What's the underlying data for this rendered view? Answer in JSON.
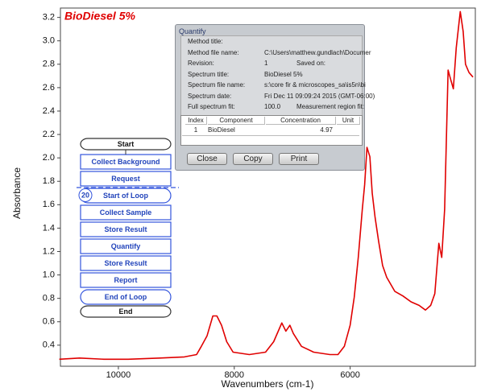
{
  "chart_data": {
    "type": "line",
    "title": "BioDiesel 5%",
    "x_label": "Wavenumbers (cm-1)",
    "y_label": "Absorbance",
    "color": "#e00000",
    "x": [
      11020,
      10670,
      10250,
      9830,
      9280,
      8860,
      8650,
      8580,
      8470,
      8370,
      8300,
      8220,
      8130,
      8020,
      7740,
      7460,
      7320,
      7180,
      7110,
      7040,
      6980,
      6840,
      6630,
      6350,
      6210,
      6100,
      6000,
      5930,
      5860,
      5790,
      5750,
      5710,
      5660,
      5620,
      5570,
      5510,
      5440,
      5370,
      5230,
      5090,
      4950,
      4810,
      4700,
      4610,
      4540,
      4470,
      4420,
      4370,
      4310,
      4260,
      4220,
      4170,
      4100,
      4050,
      4010,
      3950,
      3880
    ],
    "values": [
      0.28,
      0.29,
      0.28,
      0.28,
      0.29,
      0.3,
      0.32,
      0.38,
      0.48,
      0.65,
      0.65,
      0.57,
      0.43,
      0.34,
      0.32,
      0.34,
      0.43,
      0.59,
      0.52,
      0.57,
      0.5,
      0.39,
      0.34,
      0.32,
      0.32,
      0.39,
      0.57,
      0.81,
      1.15,
      1.56,
      1.77,
      2.09,
      2.01,
      1.7,
      1.49,
      1.29,
      1.08,
      0.98,
      0.86,
      0.82,
      0.77,
      0.74,
      0.7,
      0.74,
      0.84,
      1.27,
      1.15,
      1.56,
      2.75,
      2.66,
      2.59,
      2.94,
      3.25,
      3.08,
      2.8,
      2.73,
      2.69
    ],
    "xlim": [
      11000,
      3840
    ],
    "ylim": [
      0.22,
      3.28
    ],
    "xticks": [
      10000,
      8000,
      6000
    ],
    "yticks": [
      0.4,
      0.6,
      0.8,
      {
        "value": 1,
        "label": "1.0"
      },
      1.2,
      1.4,
      1.6,
      1.8,
      {
        "value": 2,
        "label": "2.0"
      },
      2.2,
      2.4,
      2.6,
      2.8,
      {
        "value": 3,
        "label": "3.0"
      },
      3.2
    ]
  },
  "dialog": {
    "title": "Quantify",
    "rows": [
      [
        "Method title:"
      ],
      [
        "Method file name:",
        "C:\\Users\\matthew.gundlach\\Documer"
      ],
      [
        "Revision:",
        "1",
        "Saved on:"
      ],
      [
        "Spectrum title:",
        "BioDiesel 5%"
      ],
      [
        "Spectrum file name:",
        "s:\\core fir & microscopes_sa\\is5n\\bi"
      ],
      [
        "Spectrum date:",
        "Fri Dec 11 09:09:24 2015 (GMT-06:00)"
      ],
      [
        "Full spectrum fit:",
        "100.0",
        "Measurement region fit:"
      ]
    ],
    "table": {
      "headers": [
        "Index",
        "Component",
        "Concentration",
        "Unit"
      ],
      "rows": [
        [
          1,
          "BioDiesel",
          4.97
        ]
      ]
    },
    "buttons": [
      "Close",
      "Copy",
      "Print"
    ]
  },
  "flowchart": {
    "steps": [
      "Start",
      "Collect Background",
      "Request",
      "Start of Loop",
      "Collect Sample",
      "Store Result",
      "Quantify",
      "Store Result",
      "Report",
      "End of Loop",
      "End"
    ],
    "loop_count": 20
  }
}
